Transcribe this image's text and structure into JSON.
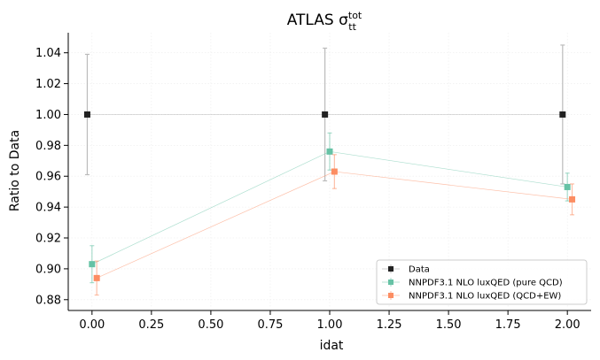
{
  "chart_data": {
    "type": "scatter",
    "title": "ATLAS σ",
    "title_sub": "tt",
    "title_sup": "tot",
    "xlabel": "idat",
    "ylabel": "Ratio to Data",
    "xlim": [
      -0.1,
      2.1
    ],
    "ylim": [
      0.873,
      1.053
    ],
    "xticks": [
      0.0,
      0.25,
      0.5,
      0.75,
      1.0,
      1.25,
      1.5,
      1.75,
      2.0
    ],
    "xtick_labels": [
      "0.00",
      "0.25",
      "0.50",
      "0.75",
      "1.00",
      "1.25",
      "1.50",
      "1.75",
      "2.00"
    ],
    "yticks": [
      0.88,
      0.9,
      0.92,
      0.94,
      0.96,
      0.98,
      1.0,
      1.02,
      1.04
    ],
    "ytick_labels": [
      "0.88",
      "0.90",
      "0.92",
      "0.94",
      "0.96",
      "0.98",
      "1.00",
      "1.02",
      "1.04"
    ],
    "grid": true,
    "legend_position": "lower-right",
    "series": [
      {
        "name": "Data",
        "color": "#222222",
        "x": [
          -0.02,
          0.98,
          1.98
        ],
        "y": [
          1.0,
          1.0,
          1.0
        ],
        "err": [
          0.039,
          0.043,
          0.045
        ]
      },
      {
        "name": "NNPDF3.1 NLO luxQED (pure QCD)",
        "color": "#66c2a5",
        "x": [
          0.0,
          1.0,
          2.0
        ],
        "y": [
          0.903,
          0.976,
          0.953
        ],
        "err": [
          0.012,
          0.012,
          0.009
        ]
      },
      {
        "name": "NNPDF3.1 NLO luxQED (QCD+EW)",
        "color": "#fc8d62",
        "x": [
          0.02,
          1.02,
          2.02
        ],
        "y": [
          0.894,
          0.963,
          0.945
        ],
        "err": [
          0.011,
          0.011,
          0.01
        ]
      }
    ]
  }
}
